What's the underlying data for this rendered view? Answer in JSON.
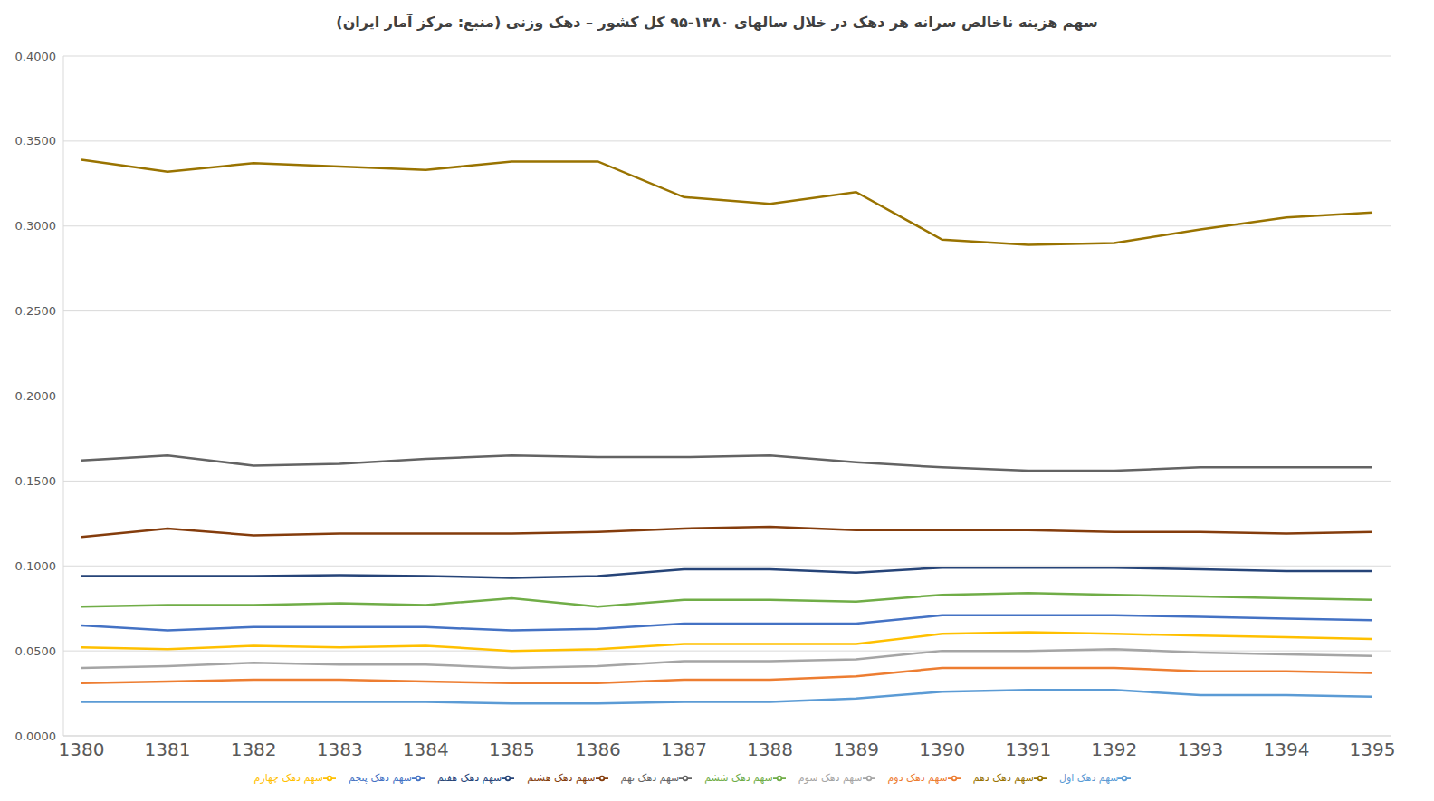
{
  "chart_data": {
    "type": "line",
    "title": "سهم هزینه ناخالص سرانه هر دهک در خلال سالهای ۱۳۸۰-۹۵ کل کشور – دهک وزنی (منبع: مرکز آمار ایران)",
    "categories": [
      "1380",
      "1381",
      "1382",
      "1383",
      "1384",
      "1385",
      "1386",
      "1387",
      "1388",
      "1389",
      "1390",
      "1391",
      "1392",
      "1393",
      "1394",
      "1395"
    ],
    "series": [
      {
        "name": "سهم دهک اول",
        "color": "#5b9bd5",
        "values": [
          0.02,
          0.02,
          0.02,
          0.02,
          0.02,
          0.019,
          0.019,
          0.02,
          0.02,
          0.022,
          0.026,
          0.027,
          0.027,
          0.024,
          0.024,
          0.023
        ]
      },
      {
        "name": "سهم دهک دوم",
        "color": "#ed7d31",
        "values": [
          0.031,
          0.032,
          0.033,
          0.033,
          0.032,
          0.031,
          0.031,
          0.033,
          0.033,
          0.035,
          0.04,
          0.04,
          0.04,
          0.038,
          0.038,
          0.037
        ]
      },
      {
        "name": "سهم دهک سوم",
        "color": "#a5a5a5",
        "values": [
          0.04,
          0.041,
          0.043,
          0.042,
          0.042,
          0.04,
          0.041,
          0.044,
          0.044,
          0.045,
          0.05,
          0.05,
          0.051,
          0.049,
          0.048,
          0.047
        ]
      },
      {
        "name": "سهم دهک چهارم",
        "color": "#ffc000",
        "values": [
          0.052,
          0.051,
          0.053,
          0.052,
          0.053,
          0.05,
          0.051,
          0.054,
          0.054,
          0.054,
          0.06,
          0.061,
          0.06,
          0.059,
          0.058,
          0.057
        ]
      },
      {
        "name": "سهم دهک پنجم",
        "color": "#4472c4",
        "values": [
          0.065,
          0.062,
          0.064,
          0.064,
          0.064,
          0.062,
          0.063,
          0.066,
          0.066,
          0.066,
          0.071,
          0.071,
          0.071,
          0.07,
          0.069,
          0.068
        ]
      },
      {
        "name": "سهم دهک ششم",
        "color": "#70ad47",
        "values": [
          0.076,
          0.077,
          0.077,
          0.078,
          0.077,
          0.081,
          0.076,
          0.08,
          0.08,
          0.079,
          0.083,
          0.084,
          0.083,
          0.082,
          0.081,
          0.08
        ]
      },
      {
        "name": "سهم دهک هفتم",
        "color": "#264478",
        "values": [
          0.094,
          0.094,
          0.094,
          0.0945,
          0.094,
          0.093,
          0.094,
          0.098,
          0.098,
          0.096,
          0.099,
          0.099,
          0.099,
          0.098,
          0.097,
          0.097
        ]
      },
      {
        "name": "سهم دهک هشتم",
        "color": "#843c0c",
        "values": [
          0.117,
          0.122,
          0.118,
          0.119,
          0.119,
          0.119,
          0.12,
          0.122,
          0.123,
          0.121,
          0.121,
          0.121,
          0.12,
          0.12,
          0.119,
          0.12
        ]
      },
      {
        "name": "سهم دهک نهم",
        "color": "#636363",
        "values": [
          0.162,
          0.165,
          0.159,
          0.16,
          0.163,
          0.165,
          0.164,
          0.164,
          0.165,
          0.161,
          0.158,
          0.156,
          0.156,
          0.158,
          0.158,
          0.158
        ]
      },
      {
        "name": "سهم دهک دهم",
        "color": "#997300",
        "values": [
          0.339,
          0.332,
          0.337,
          0.335,
          0.333,
          0.338,
          0.338,
          0.317,
          0.313,
          0.32,
          0.292,
          0.289,
          0.29,
          0.298,
          0.305,
          0.308
        ]
      }
    ],
    "ylim": [
      0,
      0.4
    ],
    "yticks": [
      {
        "value": 0,
        "label": "0.0000"
      },
      {
        "value": 0.05,
        "label": "0.0500"
      },
      {
        "value": 0.1,
        "label": "0.1000"
      },
      {
        "value": 0.15,
        "label": "0.1500"
      },
      {
        "value": 0.2,
        "label": "0.2000"
      },
      {
        "value": 0.25,
        "label": "0.2500"
      },
      {
        "value": 0.3,
        "label": "0.3000"
      },
      {
        "value": 0.35,
        "label": "0.3500"
      },
      {
        "value": 0.4,
        "label": "0.4000"
      }
    ],
    "grid": true,
    "legend": "bottom"
  }
}
